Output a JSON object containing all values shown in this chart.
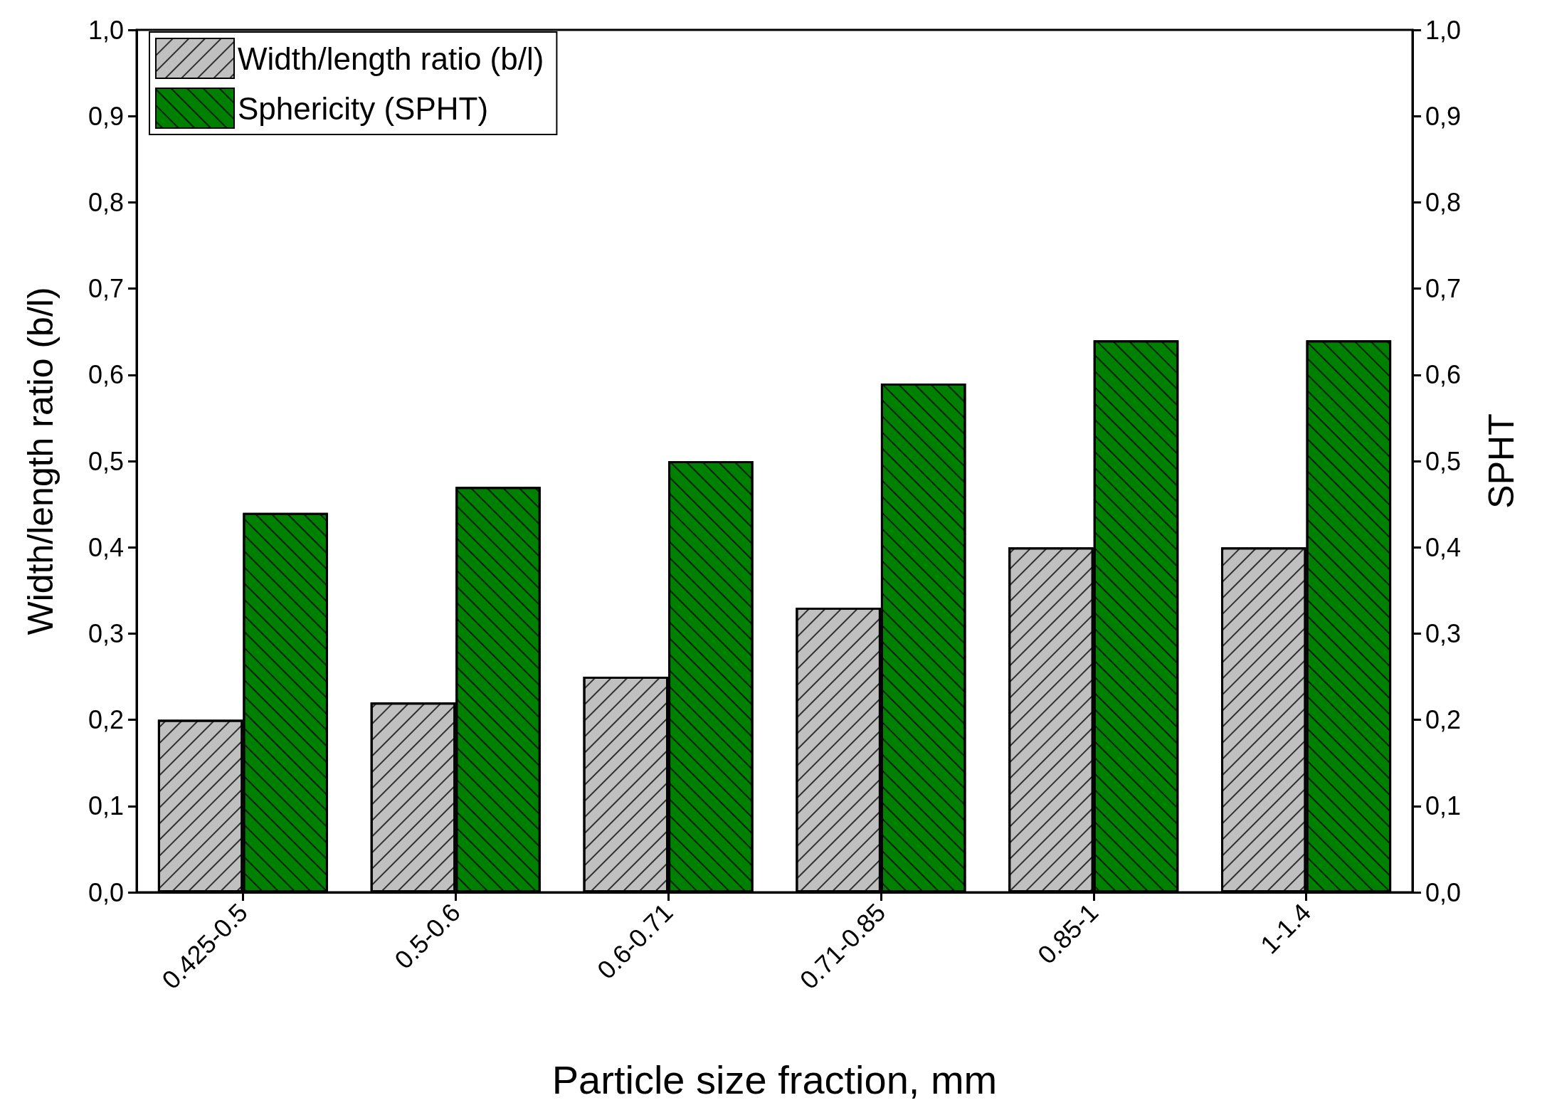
{
  "chart_data": {
    "type": "bar",
    "xlabel": "Particle size fraction, mm",
    "ylabel": "Width/length ratio (b/l)",
    "y2label": "SPHT",
    "categories": [
      "0.425-0.5",
      "0.5-0.6",
      "0.6-0.71",
      "0.71-0.85",
      "0.85-1",
      "1-1.4"
    ],
    "series": [
      {
        "name": "Width/length ratio (b/l)",
        "color": "#c0c0c0",
        "values": [
          0.2,
          0.22,
          0.25,
          0.33,
          0.4,
          0.4
        ]
      },
      {
        "name": "Sphericity (SPHT)",
        "color": "#008000",
        "axis": "y2",
        "values": [
          0.44,
          0.47,
          0.5,
          0.59,
          0.64,
          0.64
        ]
      }
    ],
    "ylim": [
      0,
      1
    ],
    "yticks": [
      {
        "value": 0,
        "label": "0,0"
      },
      {
        "value": 0.1,
        "label": "0,1"
      },
      {
        "value": 0.2,
        "label": "0,2"
      },
      {
        "value": 0.3,
        "label": "0,3"
      },
      {
        "value": 0.4,
        "label": "0,4"
      },
      {
        "value": 0.5,
        "label": "0,5"
      },
      {
        "value": 0.6,
        "label": "0,6"
      },
      {
        "value": 0.7,
        "label": "0,7"
      },
      {
        "value": 0.8,
        "label": "0,8"
      },
      {
        "value": 0.9,
        "label": "0,9"
      },
      {
        "value": 1,
        "label": "1,0"
      }
    ],
    "y2lim": [
      0,
      1
    ],
    "y2ticks": [
      {
        "value": 0,
        "label": "0,0"
      },
      {
        "value": 0.1,
        "label": "0,1"
      },
      {
        "value": 0.2,
        "label": "0,2"
      },
      {
        "value": 0.3,
        "label": "0,3"
      },
      {
        "value": 0.4,
        "label": "0,4"
      },
      {
        "value": 0.5,
        "label": "0,5"
      },
      {
        "value": 0.6,
        "label": "0,6"
      },
      {
        "value": 0.7,
        "label": "0,7"
      },
      {
        "value": 0.8,
        "label": "0,8"
      },
      {
        "value": 0.9,
        "label": "0,9"
      },
      {
        "value": 1,
        "label": "1,0"
      }
    ],
    "grid": false,
    "legend": "top left"
  }
}
